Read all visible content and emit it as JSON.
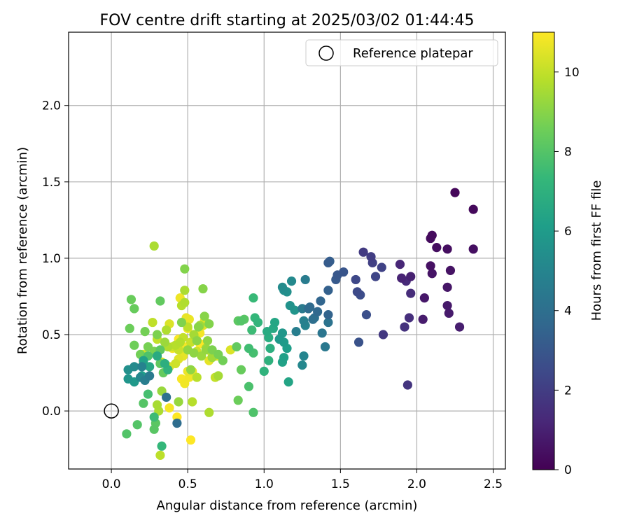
{
  "chart_data": {
    "type": "scatter",
    "title": "FOV centre drift starting at 2025/03/02 01:44:45",
    "xlabel": "Angular distance from reference (arcmin)",
    "ylabel": "Rotation from reference (arcmin)",
    "xlim": [
      -0.28,
      2.58
    ],
    "ylim": [
      -0.38,
      2.48
    ],
    "xticks": [
      0.0,
      0.5,
      1.0,
      1.5,
      2.0,
      2.5
    ],
    "xtick_labels": [
      "0.0",
      "0.5",
      "1.0",
      "1.5",
      "2.0",
      "2.5"
    ],
    "yticks": [
      0.0,
      0.5,
      1.0,
      1.5,
      2.0
    ],
    "ytick_labels": [
      "0.0",
      "0.5",
      "1.0",
      "1.5",
      "2.0"
    ],
    "grid": true,
    "legend": {
      "placement": "top-right",
      "entries": [
        {
          "label": "Reference platepar",
          "marker": "open-circle"
        }
      ]
    },
    "reference_point": {
      "x": 0.0,
      "y": 0.0
    },
    "colorbar": {
      "label": "Hours from first FF file",
      "colormap": "viridis",
      "range": [
        0,
        11
      ],
      "ticks": [
        0,
        2,
        4,
        6,
        8,
        10
      ],
      "tick_labels": [
        "0",
        "2",
        "4",
        "6",
        "8",
        "10"
      ]
    },
    "viridis_stops": [
      "#440154",
      "#482878",
      "#3e4989",
      "#31688e",
      "#26828e",
      "#1f9e89",
      "#35b779",
      "#6ece58",
      "#b5de2b",
      "#fde725"
    ],
    "points_hours_xy": [
      [
        0.2,
        2.25,
        1.43
      ],
      [
        0.25,
        2.37,
        1.32
      ],
      [
        0.3,
        2.1,
        1.15
      ],
      [
        0.35,
        2.09,
        1.13
      ],
      [
        0.4,
        2.13,
        1.07
      ],
      [
        0.4,
        2.2,
        1.06
      ],
      [
        0.45,
        2.37,
        1.06
      ],
      [
        0.5,
        2.09,
        0.95
      ],
      [
        0.55,
        2.22,
        0.92
      ],
      [
        0.6,
        2.1,
        0.9
      ],
      [
        0.65,
        2.2,
        0.81
      ],
      [
        0.7,
        2.05,
        0.74
      ],
      [
        0.75,
        2.2,
        0.69
      ],
      [
        0.8,
        2.21,
        0.64
      ],
      [
        0.85,
        2.04,
        0.6
      ],
      [
        0.9,
        2.28,
        0.55
      ],
      [
        1.0,
        1.96,
        0.88
      ],
      [
        1.1,
        1.9,
        0.87
      ],
      [
        1.2,
        1.89,
        0.96
      ],
      [
        1.3,
        1.93,
        0.85
      ],
      [
        1.4,
        1.96,
        0.77
      ],
      [
        1.5,
        1.95,
        0.61
      ],
      [
        1.6,
        1.92,
        0.55
      ],
      [
        1.7,
        1.94,
        0.17
      ],
      [
        1.8,
        1.78,
        0.5
      ],
      [
        1.9,
        1.65,
        1.04
      ],
      [
        2.0,
        1.7,
        1.01
      ],
      [
        2.1,
        1.71,
        0.97
      ],
      [
        2.2,
        1.77,
        0.94
      ],
      [
        2.3,
        1.73,
        0.88
      ],
      [
        2.4,
        1.6,
        0.86
      ],
      [
        2.5,
        1.61,
        0.78
      ],
      [
        2.6,
        1.63,
        0.76
      ],
      [
        2.7,
        1.67,
        0.63
      ],
      [
        2.8,
        1.62,
        0.45
      ],
      [
        2.9,
        1.52,
        0.91
      ],
      [
        3.0,
        1.48,
        0.89
      ],
      [
        3.1,
        1.47,
        0.86
      ],
      [
        3.2,
        1.42,
        0.97
      ],
      [
        3.3,
        1.43,
        0.98
      ],
      [
        3.4,
        1.42,
        0.79
      ],
      [
        3.5,
        1.42,
        0.63
      ],
      [
        3.6,
        1.37,
        0.72
      ],
      [
        3.7,
        1.35,
        0.65
      ],
      [
        3.8,
        1.3,
        0.68
      ],
      [
        3.9,
        1.29,
        0.67
      ],
      [
        4.0,
        1.32,
        0.6
      ],
      [
        4.1,
        1.33,
        0.61
      ],
      [
        4.2,
        1.42,
        0.58
      ],
      [
        4.3,
        1.38,
        0.51
      ],
      [
        4.4,
        1.4,
        0.42
      ],
      [
        4.5,
        1.25,
        0.67
      ],
      [
        4.6,
        1.27,
        0.86
      ],
      [
        4.7,
        1.21,
        0.52
      ],
      [
        4.8,
        1.26,
        0.59
      ],
      [
        4.9,
        1.27,
        0.56
      ],
      [
        5.0,
        1.26,
        0.36
      ],
      [
        5.1,
        1.25,
        0.3
      ],
      [
        5.2,
        1.18,
        0.85
      ],
      [
        5.3,
        1.12,
        0.81
      ],
      [
        5.4,
        1.13,
        0.79
      ],
      [
        5.5,
        1.15,
        0.78
      ],
      [
        5.6,
        1.17,
        0.69
      ],
      [
        5.7,
        1.2,
        0.66
      ],
      [
        5.8,
        1.12,
        0.51
      ],
      [
        5.9,
        1.1,
        0.47
      ],
      [
        6.0,
        1.13,
        0.45
      ],
      [
        6.1,
        1.15,
        0.41
      ],
      [
        6.2,
        1.13,
        0.35
      ],
      [
        6.3,
        1.12,
        0.32
      ],
      [
        6.4,
        1.16,
        0.19
      ],
      [
        6.5,
        1.07,
        0.58
      ],
      [
        6.6,
        1.06,
        0.54
      ],
      [
        6.7,
        1.02,
        0.52
      ],
      [
        6.8,
        1.03,
        0.48
      ],
      [
        6.9,
        1.04,
        0.41
      ],
      [
        7.0,
        1.03,
        0.33
      ],
      [
        7.1,
        1.0,
        0.26
      ],
      [
        7.2,
        0.96,
        0.58
      ],
      [
        7.3,
        0.94,
        0.61
      ],
      [
        7.4,
        0.93,
        0.74
      ],
      [
        7.5,
        0.92,
        0.53
      ],
      [
        7.6,
        0.9,
        0.41
      ],
      [
        7.7,
        0.93,
        0.38
      ],
      [
        7.8,
        0.9,
        0.16
      ],
      [
        7.9,
        0.93,
        -0.01
      ],
      [
        8.0,
        0.85,
        0.59
      ],
      [
        8.1,
        0.87,
        0.6
      ],
      [
        8.2,
        0.83,
        0.59
      ],
      [
        8.3,
        0.82,
        0.42
      ],
      [
        8.4,
        0.85,
        0.27
      ],
      [
        8.5,
        0.83,
        0.07
      ],
      [
        8.6,
        0.73,
        0.33
      ],
      [
        8.7,
        0.7,
        0.37
      ],
      [
        8.8,
        0.66,
        0.4
      ],
      [
        8.9,
        0.64,
        0.57
      ],
      [
        9.0,
        0.61,
        0.62
      ],
      [
        9.1,
        0.63,
        0.46
      ],
      [
        9.2,
        0.62,
        0.4
      ],
      [
        9.3,
        0.59,
        0.36
      ],
      [
        9.4,
        0.58,
        0.56
      ],
      [
        9.5,
        0.54,
        0.5
      ],
      [
        9.6,
        0.48,
        0.79
      ],
      [
        9.7,
        0.48,
        0.71
      ],
      [
        9.8,
        0.46,
        0.69
      ],
      [
        9.9,
        0.5,
        0.55
      ],
      [
        10.0,
        0.47,
        0.48
      ],
      [
        10.1,
        0.44,
        0.4
      ],
      [
        10.2,
        0.42,
        0.31
      ],
      [
        10.3,
        0.38,
        0.29
      ],
      [
        10.4,
        0.38,
        0.57
      ],
      [
        10.5,
        0.44,
        0.34
      ],
      [
        10.6,
        0.47,
        0.36
      ],
      [
        10.7,
        0.53,
        0.26
      ],
      [
        10.8,
        0.48,
        0.18
      ],
      [
        10.9,
        0.46,
        0.21
      ],
      [
        11.0,
        0.43,
        -0.04
      ],
      [
        3.9,
        0.43,
        -0.08
      ],
      [
        4.1,
        0.36,
        0.09
      ],
      [
        4.5,
        0.25,
        0.23
      ],
      [
        4.7,
        0.22,
        0.2
      ],
      [
        4.9,
        0.2,
        0.29
      ],
      [
        5.1,
        0.19,
        0.22
      ],
      [
        5.3,
        0.15,
        0.29
      ],
      [
        5.5,
        0.11,
        0.27
      ],
      [
        5.7,
        0.11,
        0.21
      ],
      [
        5.9,
        0.15,
        0.19
      ],
      [
        6.1,
        0.2,
        0.23
      ],
      [
        6.3,
        0.21,
        0.33
      ],
      [
        6.5,
        0.25,
        0.29
      ],
      [
        6.7,
        0.3,
        0.36
      ],
      [
        6.9,
        0.35,
        0.31
      ],
      [
        7.1,
        0.37,
        0.27
      ],
      [
        7.3,
        0.33,
        -0.23
      ],
      [
        7.5,
        0.28,
        -0.04
      ],
      [
        7.7,
        0.24,
        0.11
      ],
      [
        7.9,
        0.24,
        0.36
      ],
      [
        7.95,
        0.1,
        -0.15
      ],
      [
        8.0,
        0.17,
        -0.09
      ],
      [
        8.05,
        0.21,
        0.05
      ],
      [
        8.1,
        0.28,
        -0.12
      ],
      [
        8.15,
        0.29,
        -0.08
      ],
      [
        8.2,
        0.32,
        0.4
      ],
      [
        8.25,
        0.32,
        0.31
      ],
      [
        8.3,
        0.32,
        0.72
      ],
      [
        8.35,
        0.34,
        0.25
      ],
      [
        8.4,
        0.15,
        0.67
      ],
      [
        8.45,
        0.13,
        0.73
      ],
      [
        8.5,
        0.12,
        0.54
      ],
      [
        8.55,
        0.15,
        0.43
      ],
      [
        8.6,
        0.19,
        0.37
      ],
      [
        8.65,
        0.22,
        0.52
      ],
      [
        8.7,
        0.24,
        0.42
      ],
      [
        8.75,
        0.28,
        0.39
      ],
      [
        8.8,
        0.3,
        0.5
      ],
      [
        8.85,
        0.46,
        0.58
      ],
      [
        8.9,
        0.48,
        0.93
      ],
      [
        8.95,
        0.6,
        0.8
      ],
      [
        9.0,
        0.57,
        0.55
      ],
      [
        9.05,
        0.56,
        0.46
      ],
      [
        9.1,
        0.54,
        0.38
      ],
      [
        9.15,
        0.52,
        0.27
      ],
      [
        9.2,
        0.5,
        0.4
      ],
      [
        9.25,
        0.44,
        0.06
      ],
      [
        9.3,
        0.33,
        0.13
      ],
      [
        9.35,
        0.35,
        0.45
      ],
      [
        9.4,
        0.62,
        0.41
      ],
      [
        9.45,
        0.66,
        0.35
      ],
      [
        9.5,
        0.7,
        0.23
      ],
      [
        9.55,
        0.3,
        0.04
      ],
      [
        9.6,
        0.31,
        0.0
      ],
      [
        9.65,
        0.64,
        -0.01
      ],
      [
        9.7,
        0.36,
        0.53
      ],
      [
        9.75,
        0.45,
        0.45
      ],
      [
        9.8,
        0.53,
        0.06
      ],
      [
        9.85,
        0.56,
        0.22
      ],
      [
        9.9,
        0.32,
        -0.29
      ],
      [
        9.95,
        0.27,
        0.58
      ],
      [
        10.0,
        0.3,
        0.47
      ],
      [
        10.05,
        0.33,
        0.32
      ],
      [
        10.1,
        0.52,
        0.45
      ],
      [
        10.15,
        0.56,
        0.39
      ],
      [
        10.2,
        0.4,
        0.42
      ],
      [
        10.25,
        0.21,
        0.37
      ],
      [
        10.3,
        0.66,
        0.37
      ],
      [
        10.35,
        0.69,
        0.36
      ],
      [
        10.4,
        0.78,
        0.4
      ],
      [
        10.45,
        0.55,
        0.48
      ],
      [
        10.5,
        0.6,
        0.56
      ],
      [
        10.55,
        0.62,
        0.57
      ],
      [
        10.6,
        0.61,
        0.59
      ],
      [
        10.65,
        0.49,
        0.61
      ],
      [
        10.7,
        0.51,
        0.6
      ],
      [
        10.75,
        0.45,
        0.74
      ],
      [
        10.8,
        0.5,
        0.54
      ],
      [
        10.85,
        0.58,
        0.51
      ],
      [
        10.9,
        0.48,
        0.42
      ],
      [
        10.95,
        0.44,
        0.47
      ],
      [
        11.0,
        0.58,
        0.44
      ],
      [
        10.6,
        0.64,
        0.33
      ],
      [
        10.7,
        0.5,
        0.26
      ],
      [
        10.8,
        0.51,
        0.22
      ],
      [
        10.85,
        0.38,
        0.02
      ],
      [
        10.9,
        0.4,
        0.41
      ],
      [
        10.95,
        0.21,
        0.31
      ],
      [
        11.0,
        0.52,
        -0.19
      ],
      [
        9.6,
        0.28,
        1.08
      ],
      [
        9.7,
        0.37,
        0.42
      ],
      [
        9.8,
        0.42,
        0.43
      ],
      [
        10.0,
        0.68,
        0.22
      ]
    ]
  }
}
